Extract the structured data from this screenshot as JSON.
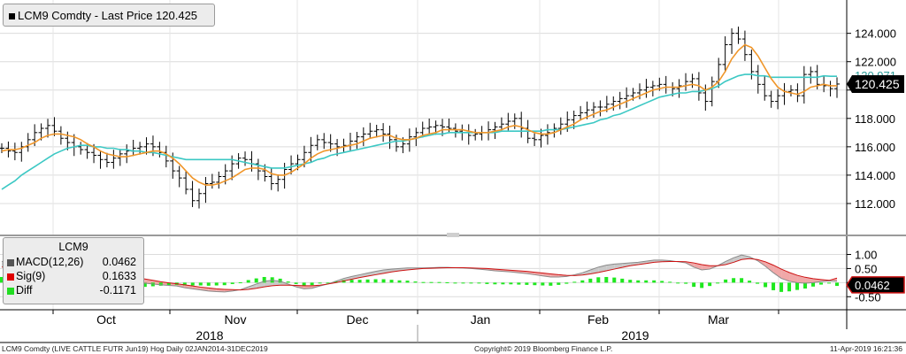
{
  "legend": {
    "ticker_price": "LCM9 Comdty - Last Price 120.425"
  },
  "macd_legend": {
    "title": "LCM9",
    "items": [
      {
        "label": "MACD(12,26)",
        "value": "0.0462",
        "color": "#555555"
      },
      {
        "label": "Sig(9)",
        "value": "0.1633",
        "color": "#e00000"
      },
      {
        "label": "Diff",
        "value": "-0.1171",
        "color": "#22dd22"
      }
    ]
  },
  "footer": {
    "left": "LCM9 Comdty (LIVE CATTLE FUTR  Jun19) Hog  Daily 02JAN2014-31DEC2019",
    "center": "Copyright© 2019 Bloomberg Finance L.P.",
    "right": "11-Apr-2019 16:21:36"
  },
  "chart_data": [
    {
      "type": "line",
      "title": "LCM9 Comdty - Last Price 120.425",
      "x_axis": {
        "months": [
          "Oct",
          "Nov",
          "Dec",
          "Jan",
          "Feb",
          "Mar"
        ],
        "years": [
          "2018",
          "2019"
        ]
      },
      "y_axis": {
        "ticks": [
          112.0,
          114.0,
          116.0,
          118.0,
          120.0,
          122.0,
          124.0
        ],
        "tick_labels": [
          "112.000",
          "114.000",
          "116.000",
          "118.000",
          "",
          "122.000",
          "124.000"
        ],
        "ylim": [
          110.0,
          126.1
        ]
      },
      "grid": true,
      "last_price": 120.425,
      "last_price_label": "120.425",
      "ma_label": "120.971",
      "colors": {
        "price": "#000000",
        "fast_ma": "#f0962a",
        "slow_ma": "#3cc8c4",
        "last_label_bg": "#000000"
      },
      "series": [
        {
          "values": [
            115.9,
            115.7,
            115.6,
            116.0,
            116.5,
            117.0,
            117.3,
            117.5,
            117.1,
            116.6,
            116.3,
            116.0,
            115.8,
            115.6,
            115.4,
            115.1,
            114.9,
            115.2,
            115.5,
            115.7,
            115.9,
            116.0,
            116.2,
            116.0,
            115.6,
            115.0,
            114.3,
            113.8,
            113.0,
            112.2,
            112.7,
            113.4,
            113.5,
            113.9,
            114.3,
            114.8,
            115.2,
            115.1,
            114.8,
            114.3,
            113.9,
            113.4,
            113.7,
            114.4,
            114.8,
            115.1,
            115.6,
            116.1,
            116.5,
            116.3,
            116.2,
            116.0,
            116.1,
            116.4,
            116.7,
            116.9,
            117.1,
            117.2,
            116.9,
            116.5,
            116.0,
            116.2,
            116.7,
            117.0,
            117.3,
            117.4,
            117.5,
            117.4,
            117.3,
            117.1,
            117.0,
            116.8,
            116.9,
            117.0,
            117.2,
            117.4,
            117.6,
            117.8,
            118.0,
            117.3,
            116.6,
            116.5,
            116.8,
            117.0,
            117.3,
            117.6,
            117.9,
            118.2,
            118.4,
            118.6,
            118.8,
            118.8,
            119.0,
            119.2,
            119.4,
            119.6,
            119.8,
            120.0,
            120.2,
            120.3,
            120.4,
            120.2,
            120.1,
            120.3,
            120.6,
            120.8,
            119.8,
            119.2,
            120.6,
            121.8,
            123.2,
            124.0,
            123.6,
            122.5,
            121.3,
            120.4,
            119.6,
            119.2,
            119.6,
            119.9,
            120.0,
            119.6,
            121.1,
            121.3,
            120.4,
            120.3,
            120.1,
            120.425
          ],
          "fast_ma": [
            115.7,
            115.8,
            115.8,
            115.9,
            116.1,
            116.3,
            116.6,
            116.8,
            116.9,
            116.9,
            116.8,
            116.7,
            116.5,
            116.2,
            116.0,
            115.7,
            115.5,
            115.4,
            115.3,
            115.3,
            115.4,
            115.5,
            115.6,
            115.7,
            115.7,
            115.5,
            115.2,
            114.8,
            114.3,
            113.8,
            113.5,
            113.3,
            113.3,
            113.4,
            113.6,
            113.8,
            114.1,
            114.4,
            114.5,
            114.5,
            114.4,
            114.1,
            114.0,
            114.0,
            114.2,
            114.5,
            114.8,
            115.2,
            115.5,
            115.7,
            115.8,
            115.9,
            116.0,
            116.1,
            116.2,
            116.4,
            116.6,
            116.7,
            116.8,
            116.8,
            116.6,
            116.5,
            116.5,
            116.6,
            116.8,
            116.9,
            117.0,
            117.2,
            117.2,
            117.2,
            117.2,
            117.1,
            117.0,
            117.0,
            117.0,
            117.1,
            117.2,
            117.4,
            117.5,
            117.4,
            117.2,
            117.0,
            116.9,
            116.9,
            117.0,
            117.2,
            117.4,
            117.6,
            117.9,
            118.1,
            118.3,
            118.5,
            118.6,
            118.8,
            119.0,
            119.2,
            119.4,
            119.6,
            119.8,
            120.0,
            120.1,
            120.2,
            120.2,
            120.2,
            120.3,
            120.4,
            120.3,
            120.0,
            120.2,
            120.6,
            121.3,
            122.2,
            122.8,
            123.2,
            123.0,
            122.4,
            121.6,
            120.8,
            120.2,
            119.9,
            119.8,
            119.7,
            119.9,
            120.2,
            120.3,
            120.4,
            120.3,
            120.3
          ],
          "slow_ma": [
            113.0,
            113.3,
            113.6,
            114.0,
            114.3,
            114.6,
            114.9,
            115.2,
            115.5,
            115.7,
            115.9,
            116.0,
            116.1,
            116.1,
            116.0,
            116.0,
            115.9,
            115.9,
            115.8,
            115.8,
            115.7,
            115.7,
            115.6,
            115.6,
            115.5,
            115.4,
            115.3,
            115.2,
            115.1,
            115.1,
            115.1,
            115.1,
            115.1,
            115.1,
            115.1,
            115.1,
            115.0,
            114.9,
            114.8,
            114.7,
            114.6,
            114.5,
            114.5,
            114.5,
            114.6,
            114.7,
            114.8,
            114.9,
            115.1,
            115.2,
            115.4,
            115.5,
            115.6,
            115.7,
            115.8,
            115.9,
            116.0,
            116.1,
            116.2,
            116.3,
            116.4,
            116.4,
            116.5,
            116.6,
            116.7,
            116.8,
            116.9,
            116.9,
            117.0,
            117.0,
            117.0,
            117.0,
            117.0,
            117.0,
            117.0,
            117.0,
            117.1,
            117.1,
            117.1,
            117.1,
            117.1,
            117.1,
            117.1,
            117.2,
            117.2,
            117.2,
            117.3,
            117.4,
            117.5,
            117.6,
            117.7,
            117.9,
            118.0,
            118.2,
            118.3,
            118.5,
            118.7,
            118.9,
            119.1,
            119.3,
            119.5,
            119.6,
            119.7,
            119.8,
            119.8,
            119.9,
            119.9,
            120.0,
            120.1,
            120.3,
            120.6,
            120.8,
            121.0,
            121.1,
            121.1,
            121.0,
            121.0,
            120.9,
            120.9,
            120.9,
            120.9,
            120.9,
            120.9,
            120.9,
            120.9,
            121.0,
            120.97,
            120.97
          ]
        }
      ]
    },
    {
      "type": "area",
      "title": "LCM9",
      "y_axis": {
        "ticks": [
          1.0,
          0.5,
          0.0,
          -0.5
        ],
        "tick_labels": [
          "1.00",
          "0.50",
          "",
          "-0.50"
        ],
        "ylim": [
          -0.9,
          1.55
        ]
      },
      "last_label": "0.0462",
      "colors": {
        "macd": "#8a8a8a",
        "signal": "#cc1111",
        "diff": "#1ee81e",
        "fill_above": "#c9c9c9",
        "fill_below": "#f0a8a8"
      },
      "series": [
        {
          "name": "MACD(12,26)",
          "values": [
            0.75,
            0.8,
            0.83,
            0.85,
            0.85,
            0.82,
            0.78,
            0.72,
            0.66,
            0.58,
            0.5,
            0.43,
            0.36,
            0.3,
            0.22,
            0.15,
            0.08,
            0.03,
            -0.02,
            -0.05,
            -0.08,
            -0.1,
            -0.12,
            -0.18,
            -0.22,
            -0.26,
            -0.3,
            -0.32,
            -0.33,
            -0.3,
            -0.25,
            -0.15,
            -0.05,
            0.05,
            0.08,
            0.05,
            -0.05,
            -0.15,
            -0.22,
            -0.2,
            -0.12,
            -0.05,
            0.05,
            0.15,
            0.22,
            0.28,
            0.34,
            0.4,
            0.45,
            0.48,
            0.5,
            0.52,
            0.52,
            0.52,
            0.53,
            0.54,
            0.54,
            0.53,
            0.52,
            0.5,
            0.48,
            0.45,
            0.42,
            0.4,
            0.38,
            0.35,
            0.32,
            0.28,
            0.24,
            0.2,
            0.2,
            0.22,
            0.28,
            0.35,
            0.45,
            0.55,
            0.62,
            0.66,
            0.68,
            0.7,
            0.72,
            0.76,
            0.8,
            0.8,
            0.78,
            0.74,
            0.7,
            0.55,
            0.45,
            0.48,
            0.6,
            0.75,
            0.88,
            0.98,
            0.92,
            0.78,
            0.58,
            0.35,
            0.15,
            0.05,
            0.0,
            -0.02,
            0.0,
            0.04,
            0.06,
            0.05
          ]
        },
        {
          "name": "Sig(9)",
          "values": [
            0.55,
            0.6,
            0.65,
            0.7,
            0.73,
            0.75,
            0.76,
            0.75,
            0.73,
            0.7,
            0.65,
            0.6,
            0.53,
            0.46,
            0.38,
            0.31,
            0.24,
            0.18,
            0.13,
            0.08,
            0.03,
            -0.01,
            -0.04,
            -0.08,
            -0.12,
            -0.16,
            -0.19,
            -0.22,
            -0.24,
            -0.25,
            -0.26,
            -0.24,
            -0.2,
            -0.15,
            -0.11,
            -0.09,
            -0.09,
            -0.1,
            -0.11,
            -0.11,
            -0.09,
            -0.05,
            0.0,
            0.06,
            0.12,
            0.18,
            0.23,
            0.28,
            0.33,
            0.38,
            0.42,
            0.45,
            0.48,
            0.5,
            0.51,
            0.52,
            0.53,
            0.53,
            0.53,
            0.52,
            0.51,
            0.5,
            0.48,
            0.46,
            0.44,
            0.42,
            0.4,
            0.37,
            0.34,
            0.31,
            0.28,
            0.26,
            0.25,
            0.27,
            0.31,
            0.36,
            0.42,
            0.48,
            0.54,
            0.6,
            0.64,
            0.68,
            0.72,
            0.74,
            0.75,
            0.75,
            0.74,
            0.7,
            0.64,
            0.6,
            0.6,
            0.64,
            0.72,
            0.82,
            0.85,
            0.82,
            0.74,
            0.62,
            0.48,
            0.36,
            0.26,
            0.19,
            0.14,
            0.11,
            0.08,
            0.16
          ]
        },
        {
          "name": "Diff",
          "values": [
            0.2,
            0.2,
            0.18,
            0.15,
            0.12,
            0.07,
            0.02,
            -0.03,
            -0.07,
            -0.12,
            -0.15,
            -0.17,
            -0.17,
            -0.16,
            -0.16,
            -0.16,
            -0.16,
            -0.15,
            -0.15,
            -0.13,
            -0.11,
            -0.09,
            -0.08,
            -0.1,
            -0.1,
            -0.1,
            -0.11,
            -0.1,
            -0.09,
            -0.05,
            0.01,
            0.09,
            0.15,
            0.2,
            0.19,
            0.14,
            0.04,
            -0.05,
            -0.11,
            -0.09,
            -0.03,
            0.0,
            0.05,
            0.09,
            0.1,
            0.1,
            0.11,
            0.12,
            0.12,
            0.1,
            0.08,
            0.07,
            0.04,
            0.02,
            0.02,
            0.02,
            0.01,
            0.0,
            -0.01,
            -0.02,
            -0.03,
            -0.05,
            -0.06,
            -0.06,
            -0.06,
            -0.07,
            -0.08,
            -0.09,
            -0.1,
            -0.11,
            -0.08,
            -0.04,
            0.03,
            0.08,
            0.14,
            0.19,
            0.2,
            0.18,
            0.14,
            0.1,
            0.08,
            0.08,
            0.08,
            0.06,
            0.03,
            -0.01,
            -0.04,
            -0.15,
            -0.19,
            -0.12,
            0.0,
            0.11,
            0.16,
            0.16,
            0.07,
            -0.04,
            -0.16,
            -0.27,
            -0.33,
            -0.31,
            -0.26,
            -0.21,
            -0.14,
            -0.07,
            -0.02,
            -0.1171
          ]
        }
      ]
    }
  ]
}
